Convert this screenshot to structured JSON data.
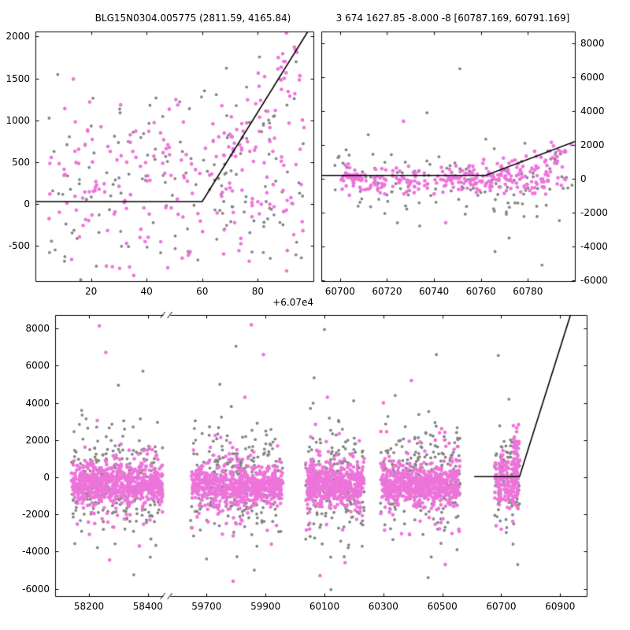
{
  "title": {
    "left": "BLG15N0304.005775 (2811.59, 4165.84)",
    "right": "3 674 1627.85 -8.000 -8 [60787.169, 60791.169]"
  },
  "colors": {
    "primary": "#ed74da",
    "secondary": "#848484",
    "model_line": "#000000",
    "background": "#ffffff",
    "text": "#000000"
  },
  "chart_data": [
    {
      "id": "zoom_offset",
      "type": "scatter",
      "seed": 3,
      "x_axis": {
        "type": "linear",
        "range": [
          0,
          100
        ],
        "ticks": [
          20,
          40,
          60,
          80
        ],
        "tick_labels": [
          "20",
          "40",
          "60",
          "80"
        ],
        "offset_label": "+6.07e4"
      },
      "y_axis": {
        "type": "linear",
        "range": [
          -920,
          2060
        ],
        "ticks": [
          -500,
          0,
          500,
          1000,
          1500,
          2000
        ],
        "tick_labels": [
          "-500",
          "0",
          "500",
          "1000",
          "1500",
          "2000"
        ],
        "side": "left"
      },
      "model_line": [
        [
          0,
          30
        ],
        [
          60,
          30
        ],
        [
          98,
          2060
        ]
      ],
      "clusters": [
        {
          "series": "secondary",
          "n": 150,
          "x": {
            "type": "uniform",
            "min": 4,
            "max": 97
          },
          "y": {
            "type": "gauss",
            "mean": 200,
            "sd": 600
          }
        },
        {
          "series": "primary",
          "n": 185,
          "x": {
            "type": "uniform",
            "min": 4,
            "max": 97
          },
          "y": {
            "type": "gauss",
            "mean": 230,
            "sd": 560
          }
        },
        {
          "series": "primary",
          "n": 55,
          "x": {
            "type": "uniform",
            "min": 66,
            "max": 96
          },
          "y": {
            "type": "trend",
            "x0": 66,
            "y0": 700,
            "x1": 96,
            "y1": 1800,
            "sd": 330
          }
        },
        {
          "series": "secondary",
          "n": 22,
          "x": {
            "type": "uniform",
            "min": 58,
            "max": 96
          },
          "y": {
            "type": "gauss",
            "mean": 1150,
            "sd": 480
          }
        }
      ],
      "outliers": []
    },
    {
      "id": "event_window",
      "type": "scatter",
      "seed": 17,
      "x_axis": {
        "type": "linear",
        "range": [
          60692,
          60800
        ],
        "ticks": [
          60700,
          60720,
          60740,
          60760,
          60780
        ],
        "tick_labels": [
          "60700",
          "60720",
          "60740",
          "60760",
          "60780"
        ]
      },
      "y_axis": {
        "type": "linear",
        "range": [
          -6050,
          8700
        ],
        "ticks": [
          -6000,
          -4000,
          -2000,
          0,
          2000,
          4000,
          6000,
          8000
        ],
        "tick_labels": [
          "-6000",
          "-4000",
          "-2000",
          "0",
          "2000",
          "4000",
          "6000",
          "8000"
        ],
        "side": "right"
      },
      "model_line": [
        [
          60692,
          200
        ],
        [
          60762,
          200
        ],
        [
          60800,
          2200
        ]
      ],
      "clusters": [
        {
          "series": "secondary",
          "n": 135,
          "x": {
            "type": "uniform",
            "min": 60696,
            "max": 60799
          },
          "y": {
            "type": "gauss",
            "mean": -50,
            "sd": 1050
          }
        },
        {
          "series": "primary",
          "n": 250,
          "x": {
            "type": "uniform",
            "min": 60700,
            "max": 60796
          },
          "y": {
            "type": "gauss",
            "mean": -80,
            "sd": 430
          }
        },
        {
          "series": "primary",
          "n": 28,
          "x": {
            "type": "gauss",
            "mean": 60706,
            "sd": 2.5
          },
          "y": {
            "type": "gauss",
            "mean": 120,
            "sd": 90
          }
        },
        {
          "series": "primary",
          "n": 55,
          "x": {
            "type": "uniform",
            "min": 60762,
            "max": 60799
          },
          "y": {
            "type": "trend",
            "x0": 60762,
            "y0": 200,
            "x1": 60799,
            "y1": 1500,
            "sd": 420
          }
        }
      ],
      "outliers": [
        {
          "series": "secondary",
          "x": 60751,
          "y": 6500
        },
        {
          "series": "primary",
          "x": 60727,
          "y": 3400
        },
        {
          "series": "secondary",
          "x": 60737,
          "y": 3900
        },
        {
          "series": "secondary",
          "x": 60772,
          "y": -3500
        },
        {
          "series": "secondary",
          "x": 60786,
          "y": -5100
        },
        {
          "series": "secondary",
          "x": 60766,
          "y": -4300
        },
        {
          "series": "primary",
          "x": 60745,
          "y": -2600
        },
        {
          "series": "secondary",
          "x": 60712,
          "y": 2600
        }
      ]
    },
    {
      "id": "full_lightcurve",
      "type": "scatter",
      "seed": 42,
      "x_axis": {
        "type": "broken",
        "segments": [
          {
            "range": [
              58085,
              58450
            ]
          },
          {
            "range": [
              59575,
              60990
            ]
          }
        ],
        "ticks": [
          58200,
          58400,
          59700,
          59900,
          60100,
          60300,
          60500,
          60700,
          60900
        ],
        "tick_labels": [
          "58200",
          "58400",
          "59700",
          "59900",
          "60100",
          "60300",
          "60500",
          "60700",
          "60900"
        ]
      },
      "y_axis": {
        "type": "linear",
        "range": [
          -6400,
          8730
        ],
        "ticks": [
          -6000,
          -4000,
          -2000,
          0,
          2000,
          4000,
          6000,
          8000
        ],
        "tick_labels": [
          "-6000",
          "-4000",
          "-2000",
          "0",
          "2000",
          "4000",
          "6000",
          "8000"
        ],
        "side": "left"
      },
      "model_line": [
        [
          60608,
          30
        ],
        [
          60762,
          30
        ],
        [
          60935,
          8730
        ]
      ],
      "clusters": [
        {
          "series": "secondary",
          "n": 250,
          "x": {
            "type": "uniform",
            "min": 58140,
            "max": 58455
          },
          "y": {
            "type": "gauss",
            "mean": -150,
            "sd": 1500
          }
        },
        {
          "series": "primary",
          "n": 170,
          "x": {
            "type": "uniform",
            "min": 58140,
            "max": 58455
          },
          "y": {
            "type": "gauss",
            "mean": -350,
            "sd": 1150
          }
        },
        {
          "series": "primary",
          "n": 520,
          "x": {
            "type": "uniform",
            "min": 58145,
            "max": 58450
          },
          "y": {
            "type": "gauss",
            "mean": -380,
            "sd": 480
          }
        },
        {
          "series": "secondary",
          "n": 250,
          "x": {
            "type": "uniform",
            "min": 59645,
            "max": 59960
          },
          "y": {
            "type": "gauss",
            "mean": -150,
            "sd": 1500
          }
        },
        {
          "series": "primary",
          "n": 170,
          "x": {
            "type": "uniform",
            "min": 59645,
            "max": 59960
          },
          "y": {
            "type": "gauss",
            "mean": -400,
            "sd": 1150
          }
        },
        {
          "series": "primary",
          "n": 520,
          "x": {
            "type": "uniform",
            "min": 59650,
            "max": 59955
          },
          "y": {
            "type": "gauss",
            "mean": -450,
            "sd": 480
          }
        },
        {
          "series": "secondary",
          "n": 200,
          "x": {
            "type": "uniform",
            "min": 60035,
            "max": 60235
          },
          "y": {
            "type": "gauss",
            "mean": -150,
            "sd": 1500
          }
        },
        {
          "series": "primary",
          "n": 140,
          "x": {
            "type": "uniform",
            "min": 60035,
            "max": 60235
          },
          "y": {
            "type": "gauss",
            "mean": -350,
            "sd": 1150
          }
        },
        {
          "series": "primary",
          "n": 420,
          "x": {
            "type": "uniform",
            "min": 60040,
            "max": 60230
          },
          "y": {
            "type": "gauss",
            "mean": -380,
            "sd": 480
          }
        },
        {
          "series": "secondary",
          "n": 230,
          "x": {
            "type": "uniform",
            "min": 60290,
            "max": 60560
          },
          "y": {
            "type": "gauss",
            "mean": -150,
            "sd": 1500
          }
        },
        {
          "series": "primary",
          "n": 160,
          "x": {
            "type": "uniform",
            "min": 60290,
            "max": 60560
          },
          "y": {
            "type": "gauss",
            "mean": -350,
            "sd": 1150
          }
        },
        {
          "series": "primary",
          "n": 480,
          "x": {
            "type": "uniform",
            "min": 60295,
            "max": 60555
          },
          "y": {
            "type": "gauss",
            "mean": -380,
            "sd": 480
          }
        },
        {
          "series": "secondary",
          "n": 85,
          "x": {
            "type": "uniform",
            "min": 60678,
            "max": 60762
          },
          "y": {
            "type": "gauss",
            "mean": -100,
            "sd": 1400
          }
        },
        {
          "series": "primary",
          "n": 150,
          "x": {
            "type": "uniform",
            "min": 60678,
            "max": 60758
          },
          "y": {
            "type": "gauss",
            "mean": -250,
            "sd": 700
          }
        },
        {
          "series": "primary",
          "n": 50,
          "x": {
            "type": "gauss",
            "mean": 60749,
            "sd": 7
          },
          "y": {
            "type": "gauss",
            "mean": 1300,
            "sd": 950
          }
        }
      ],
      "outliers": [
        {
          "series": "primary",
          "x": 58235,
          "y": 8150
        },
        {
          "series": "primary",
          "x": 58257,
          "y": 6720
        },
        {
          "series": "secondary",
          "x": 58300,
          "y": 4950
        },
        {
          "series": "secondary",
          "x": 58175,
          "y": 3600
        },
        {
          "series": "primary",
          "x": 58228,
          "y": 3050
        },
        {
          "series": "primary",
          "x": 58270,
          "y": -4450
        },
        {
          "series": "secondary",
          "x": 58352,
          "y": -5250
        },
        {
          "series": "secondary",
          "x": 58408,
          "y": -4300
        },
        {
          "series": "primary",
          "x": 59852,
          "y": 8200
        },
        {
          "series": "secondary",
          "x": 59800,
          "y": 7050
        },
        {
          "series": "secondary",
          "x": 59745,
          "y": 5000
        },
        {
          "series": "primary",
          "x": 59893,
          "y": 6600
        },
        {
          "series": "primary",
          "x": 59830,
          "y": 4300
        },
        {
          "series": "primary",
          "x": 59790,
          "y": -5600
        },
        {
          "series": "secondary",
          "x": 59862,
          "y": -5000
        },
        {
          "series": "secondary",
          "x": 59700,
          "y": -4400
        },
        {
          "series": "primary",
          "x": 59920,
          "y": -3600
        },
        {
          "series": "secondary",
          "x": 60100,
          "y": 7950
        },
        {
          "series": "secondary",
          "x": 60065,
          "y": 5350
        },
        {
          "series": "primary",
          "x": 60110,
          "y": 4300
        },
        {
          "series": "primary",
          "x": 60085,
          "y": -5300
        },
        {
          "series": "secondary",
          "x": 60122,
          "y": -6050
        },
        {
          "series": "primary",
          "x": 60170,
          "y": -4600
        },
        {
          "series": "secondary",
          "x": 60480,
          "y": 6600
        },
        {
          "series": "primary",
          "x": 60395,
          "y": 5200
        },
        {
          "series": "secondary",
          "x": 60340,
          "y": 4400
        },
        {
          "series": "primary",
          "x": 60300,
          "y": 4000
        },
        {
          "series": "primary",
          "x": 60510,
          "y": -4700
        },
        {
          "series": "secondary",
          "x": 60452,
          "y": -5400
        },
        {
          "series": "secondary",
          "x": 60550,
          "y": -3900
        },
        {
          "series": "secondary",
          "x": 60690,
          "y": 6550
        },
        {
          "series": "secondary",
          "x": 60726,
          "y": 4200
        },
        {
          "series": "secondary",
          "x": 60740,
          "y": -3600
        },
        {
          "series": "secondary",
          "x": 60756,
          "y": -4700
        },
        {
          "series": "primary",
          "x": 60700,
          "y": -2800
        }
      ]
    }
  ]
}
